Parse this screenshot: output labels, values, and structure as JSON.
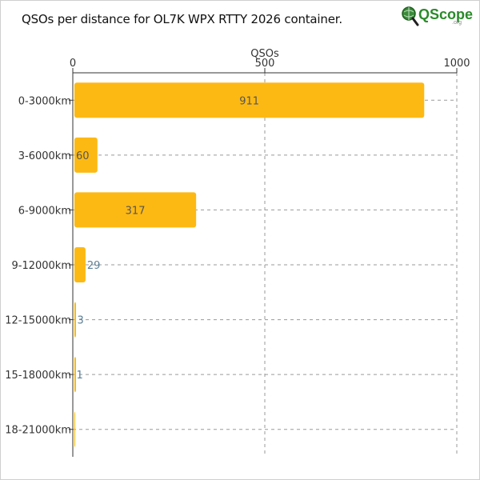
{
  "title": "QSOs per distance for OL7K WPX RTTY 2026 container.",
  "logo": {
    "text": "QScope",
    "sub": ".org"
  },
  "colors": {
    "bar": "#fdb913",
    "label_inside": "#555555",
    "label_outside": "#5b7f95",
    "grid": "#9a9a9a",
    "axis": "#333333"
  },
  "chart_data": {
    "type": "bar",
    "orientation": "horizontal",
    "xlabel": "QSOs",
    "xlabel_position": "top",
    "ylabel": "",
    "xlim": [
      0,
      1000
    ],
    "xticks": [
      0,
      500,
      1000
    ],
    "grid": true,
    "categories": [
      "0-3000km",
      "3-6000km",
      "6-9000km",
      "9-12000km",
      "12-15000km",
      "15-18000km",
      "18-21000km"
    ],
    "values": [
      911,
      60,
      317,
      29,
      3,
      1,
      0
    ]
  }
}
